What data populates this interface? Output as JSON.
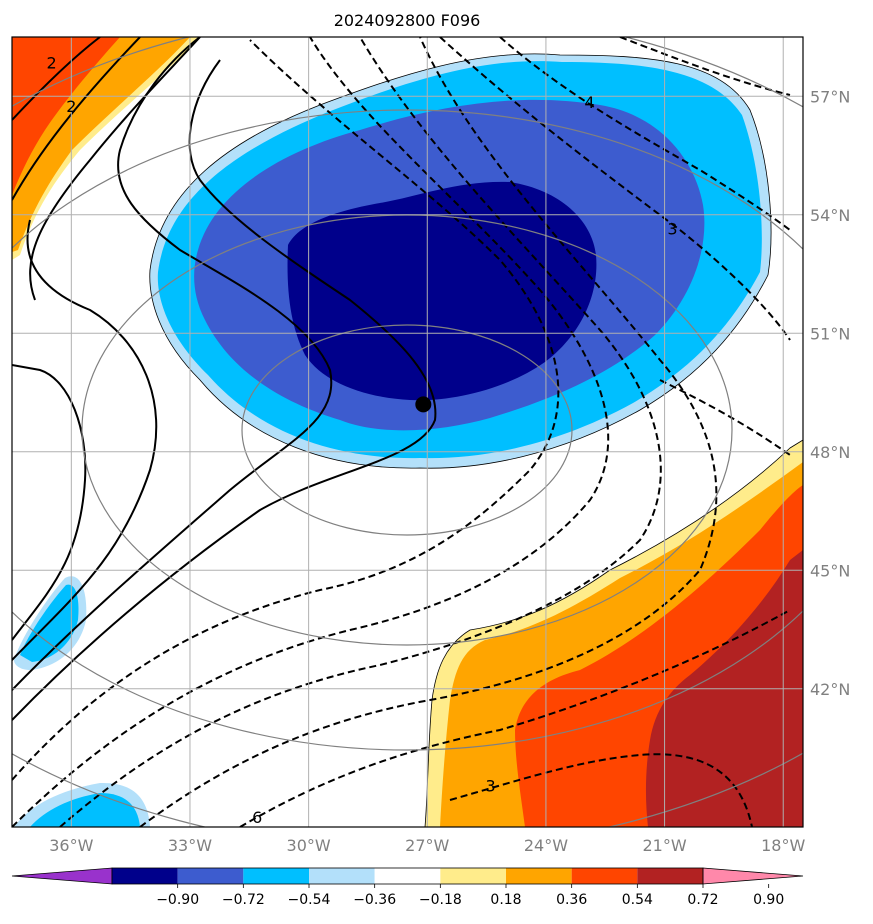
{
  "title": "2024092800 F096",
  "map": {
    "lon_labels": [
      "36°W",
      "33°W",
      "30°W",
      "27°W",
      "24°W",
      "21°W",
      "18°W"
    ],
    "lat_labels": [
      "57°N",
      "54°N",
      "51°N",
      "48°N",
      "45°N",
      "42°N"
    ],
    "lon_values": [
      -36,
      -33,
      -30,
      -27,
      -24,
      -21,
      -18
    ],
    "lat_values": [
      57,
      54,
      51,
      48,
      45,
      42
    ],
    "lon_range": [
      -37.5,
      -17.5
    ],
    "lat_range": [
      38.5,
      58.5
    ],
    "marker": {
      "lon": -27.1,
      "lat": 49.2
    },
    "contour_labels": [
      {
        "text": "2",
        "lon": -36.5,
        "lat": 57.7
      },
      {
        "text": "2",
        "lon": -36.0,
        "lat": 56.6
      },
      {
        "text": "4",
        "lon": -22.9,
        "lat": 56.7
      },
      {
        "text": "3",
        "lon": -20.8,
        "lat": 53.5
      },
      {
        "text": "3",
        "lon": -25.4,
        "lat": 39.4
      },
      {
        "text": "6",
        "lon": -31.3,
        "lat": 38.6
      }
    ],
    "colors": {
      "grid": "#b0b0b0",
      "ellipse": "#808080",
      "tick_label": "#808080"
    }
  },
  "colorbar": {
    "tick_labels": [
      "−0.90",
      "−0.72",
      "−0.54",
      "−0.36",
      "−0.18",
      "0.18",
      "0.36",
      "0.54",
      "0.72",
      "0.90"
    ],
    "colors": [
      "#9932cc",
      "#00008b",
      "#3d5ccf",
      "#00bfff",
      "#b3e0fa",
      "#ffffff",
      "#ffec8b",
      "#ffa500",
      "#ff4500",
      "#b22222",
      "#ff88aa"
    ]
  }
}
